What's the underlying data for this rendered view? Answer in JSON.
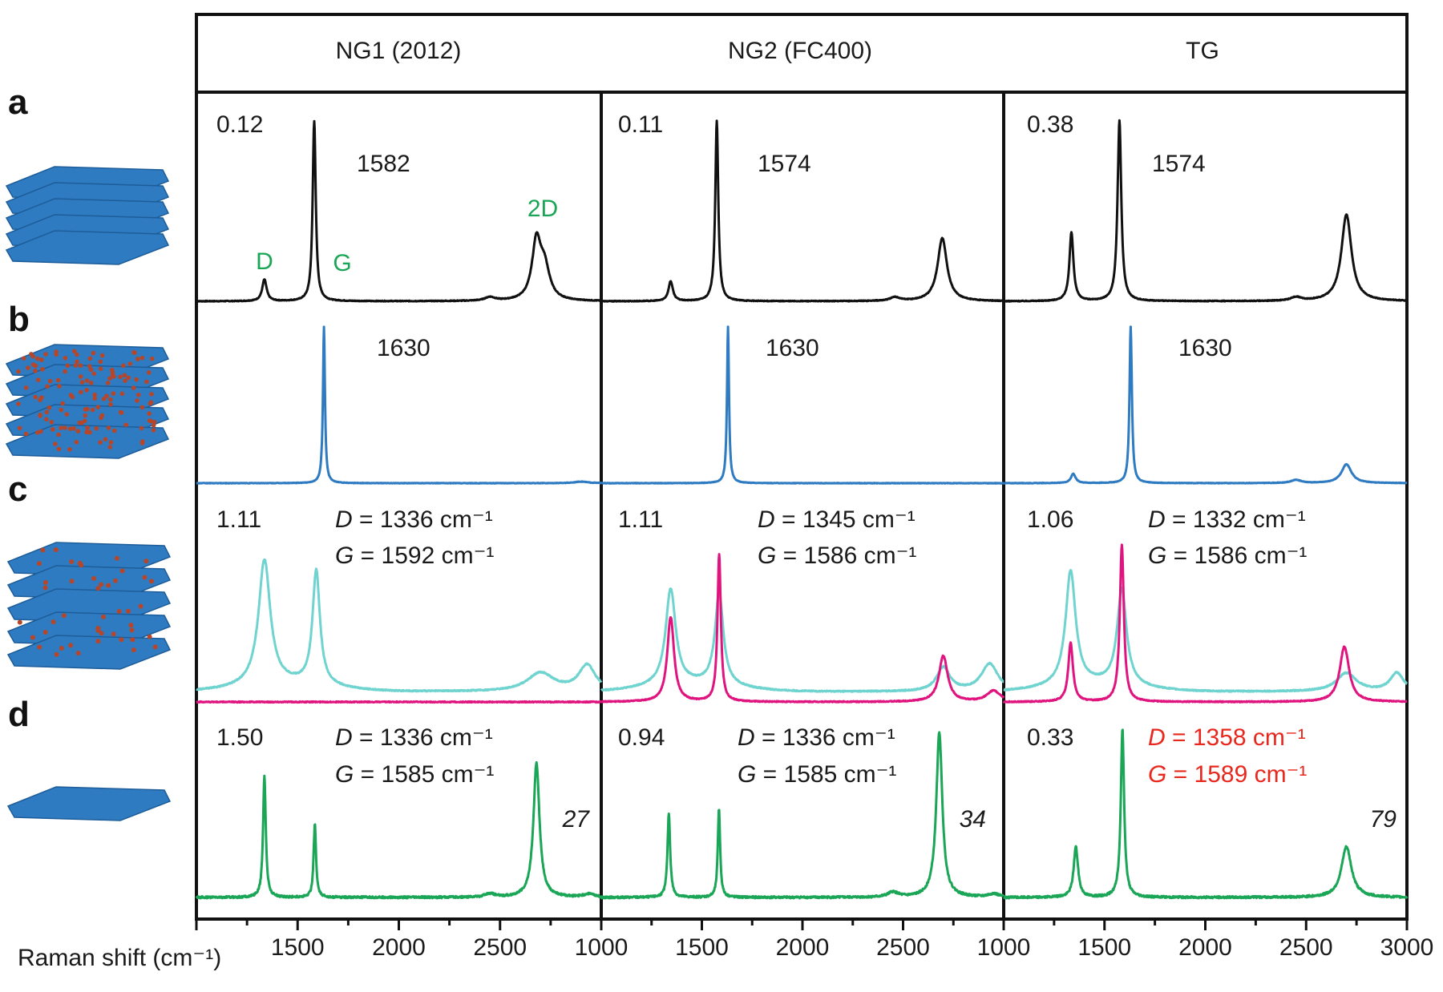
{
  "columns": [
    "NG1 (2012)",
    "NG2 (FC400)",
    "TG"
  ],
  "row_labels": [
    "a",
    "b",
    "c",
    "d"
  ],
  "x_axis": {
    "label": "Raman shift (cm⁻¹)",
    "ticks": [
      "1500",
      "2000",
      "2500",
      "1000",
      "1500",
      "2000",
      "2500",
      "1000",
      "1500",
      "2000",
      "2500",
      "3000"
    ]
  },
  "colors": {
    "a": "#111111",
    "b": "#2f7bc1",
    "c_cyan": "#6fd3cf",
    "c_magenta": "#e0147f",
    "d": "#1aa656",
    "red_text": "#e8271d",
    "label_green": "#1aa656",
    "flake": "#2f7bc1",
    "adsorbate": "#b5462a"
  },
  "icons": [
    "multilayer-graphene-icon",
    "intercalated-graphene-icon",
    "functionalized-graphene-icon",
    "monolayer-graphene-icon"
  ],
  "panels": {
    "a": [
      {
        "ratio": "0.12",
        "g_pos": "1582",
        "d_label": "D",
        "g_label": "G",
        "twod_label": "2D"
      },
      {
        "ratio": "0.11",
        "g_pos": "1574"
      },
      {
        "ratio": "0.38",
        "g_pos": "1574"
      }
    ],
    "b": [
      {
        "g_pos": "1630"
      },
      {
        "g_pos": "1630"
      },
      {
        "g_pos": "1630"
      }
    ],
    "c": [
      {
        "ratio": "1.11",
        "d_var": "D",
        "d_val": " = 1336 cm⁻¹",
        "g_var": "G",
        "g_val": " = 1592 cm⁻¹"
      },
      {
        "ratio": "1.11",
        "d_var": "D",
        "d_val": " = 1345 cm⁻¹",
        "g_var": "G",
        "g_val": " = 1586 cm⁻¹"
      },
      {
        "ratio": "1.06",
        "d_var": "D",
        "d_val": " = 1332 cm⁻¹",
        "g_var": "G",
        "g_val": " = 1586 cm⁻¹"
      }
    ],
    "d": [
      {
        "ratio": "1.50",
        "d_var": "D",
        "d_val": " = 1336 cm⁻¹",
        "g_var": "G",
        "g_val": " = 1585 cm⁻¹",
        "factor": "27"
      },
      {
        "ratio": "0.94",
        "d_var": "D",
        "d_val": " = 1336 cm⁻¹",
        "g_var": "G",
        "g_val": " = 1585 cm⁻¹",
        "factor": "34"
      },
      {
        "ratio": "0.33",
        "d_var": "D",
        "d_val": " = 1358 cm⁻¹",
        "g_var": "G",
        "g_val": " = 1589 cm⁻¹",
        "factor": "79",
        "highlight": true
      }
    ]
  },
  "chart_data": {
    "type": "line",
    "xlabel": "Raman shift (cm⁻¹)",
    "xlim": [
      1000,
      3000
    ],
    "xticks": [
      1000,
      1500,
      2000,
      2500,
      3000
    ],
    "grid": false,
    "panels": [
      {
        "row": "a",
        "column": "NG1 (2012)",
        "color": "black",
        "peaks": [
          {
            "x": 1336,
            "height": 0.12,
            "width": 13
          },
          {
            "x": 1582,
            "height": 1.0,
            "width": 9
          },
          {
            "x": 2450,
            "height": 0.02,
            "width": 30
          },
          {
            "x": 2680,
            "height": 0.32,
            "width": 26
          },
          {
            "x": 2720,
            "height": 0.17,
            "width": 30
          }
        ]
      },
      {
        "row": "a",
        "column": "NG2 (FC400)",
        "color": "black",
        "peaks": [
          {
            "x": 1345,
            "height": 0.11,
            "width": 13
          },
          {
            "x": 1574,
            "height": 1.0,
            "width": 9
          },
          {
            "x": 2460,
            "height": 0.02,
            "width": 30
          },
          {
            "x": 2695,
            "height": 0.35,
            "width": 28
          }
        ]
      },
      {
        "row": "a",
        "column": "TG",
        "color": "black",
        "peaks": [
          {
            "x": 1336,
            "height": 0.38,
            "width": 12
          },
          {
            "x": 1574,
            "height": 1.0,
            "width": 11
          },
          {
            "x": 2450,
            "height": 0.02,
            "width": 30
          },
          {
            "x": 2700,
            "height": 0.48,
            "width": 30
          }
        ]
      },
      {
        "row": "b",
        "column": "NG1 (2012)",
        "color": "blue",
        "peaks": [
          {
            "x": 1630,
            "height": 1.0,
            "width": 6
          },
          {
            "x": 2900,
            "height": 0.01,
            "width": 40
          }
        ]
      },
      {
        "row": "b",
        "column": "NG2 (FC400)",
        "color": "blue",
        "peaks": [
          {
            "x": 1630,
            "height": 1.0,
            "width": 6
          }
        ]
      },
      {
        "row": "b",
        "column": "TG",
        "color": "blue",
        "peaks": [
          {
            "x": 1345,
            "height": 0.06,
            "width": 14
          },
          {
            "x": 1630,
            "height": 1.0,
            "width": 7
          },
          {
            "x": 2450,
            "height": 0.02,
            "width": 30
          },
          {
            "x": 2700,
            "height": 0.12,
            "width": 30
          }
        ]
      },
      {
        "row": "c",
        "column": "NG1 (2012)",
        "color": "cyan",
        "peaks": [
          {
            "x": 1336,
            "height": 0.68,
            "width": 35
          },
          {
            "x": 1592,
            "height": 0.62,
            "width": 22
          },
          {
            "x": 2700,
            "height": 0.1,
            "width": 80
          },
          {
            "x": 2930,
            "height": 0.14,
            "width": 50
          }
        ]
      },
      {
        "row": "c",
        "column": "NG1 (2012)",
        "color": "magenta",
        "peaks": []
      },
      {
        "row": "c",
        "column": "NG2 (FC400)",
        "color": "cyan",
        "peaks": [
          {
            "x": 1345,
            "height": 0.52,
            "width": 30
          },
          {
            "x": 1586,
            "height": 0.5,
            "width": 25
          },
          {
            "x": 2700,
            "height": 0.13,
            "width": 40
          },
          {
            "x": 2930,
            "height": 0.15,
            "width": 50
          }
        ]
      },
      {
        "row": "c",
        "column": "NG2 (FC400)",
        "color": "magenta",
        "peaks": [
          {
            "x": 1345,
            "height": 0.46,
            "width": 20
          },
          {
            "x": 1586,
            "height": 0.8,
            "width": 10
          },
          {
            "x": 2700,
            "height": 0.25,
            "width": 26
          },
          {
            "x": 2950,
            "height": 0.06,
            "width": 40
          }
        ]
      },
      {
        "row": "c",
        "column": "TG",
        "color": "cyan",
        "peaks": [
          {
            "x": 1332,
            "height": 0.62,
            "width": 30
          },
          {
            "x": 1586,
            "height": 0.52,
            "width": 28
          },
          {
            "x": 2700,
            "height": 0.1,
            "width": 60
          },
          {
            "x": 2950,
            "height": 0.1,
            "width": 40
          }
        ]
      },
      {
        "row": "c",
        "column": "TG",
        "color": "magenta",
        "peaks": [
          {
            "x": 1332,
            "height": 0.32,
            "width": 14
          },
          {
            "x": 1586,
            "height": 0.85,
            "width": 12
          },
          {
            "x": 2690,
            "height": 0.3,
            "width": 28
          }
        ]
      },
      {
        "row": "d",
        "column": "NG1 (2012)",
        "color": "green",
        "peaks": [
          {
            "x": 1336,
            "height": 0.72,
            "width": 8
          },
          {
            "x": 1585,
            "height": 0.44,
            "width": 7
          },
          {
            "x": 2450,
            "height": 0.02,
            "width": 30
          },
          {
            "x": 2680,
            "height": 0.8,
            "width": 18
          },
          {
            "x": 2940,
            "height": 0.02,
            "width": 30
          }
        ]
      },
      {
        "row": "d",
        "column": "NG2 (FC400)",
        "color": "green",
        "peaks": [
          {
            "x": 1336,
            "height": 0.5,
            "width": 8
          },
          {
            "x": 1585,
            "height": 0.53,
            "width": 7
          },
          {
            "x": 2450,
            "height": 0.03,
            "width": 30
          },
          {
            "x": 2680,
            "height": 0.98,
            "width": 18
          },
          {
            "x": 2950,
            "height": 0.02,
            "width": 30
          }
        ]
      },
      {
        "row": "d",
        "column": "TG",
        "color": "green",
        "peaks": [
          {
            "x": 1358,
            "height": 0.3,
            "width": 13
          },
          {
            "x": 1589,
            "height": 1.0,
            "width": 10
          },
          {
            "x": 2700,
            "height": 0.3,
            "width": 30
          }
        ]
      }
    ]
  }
}
